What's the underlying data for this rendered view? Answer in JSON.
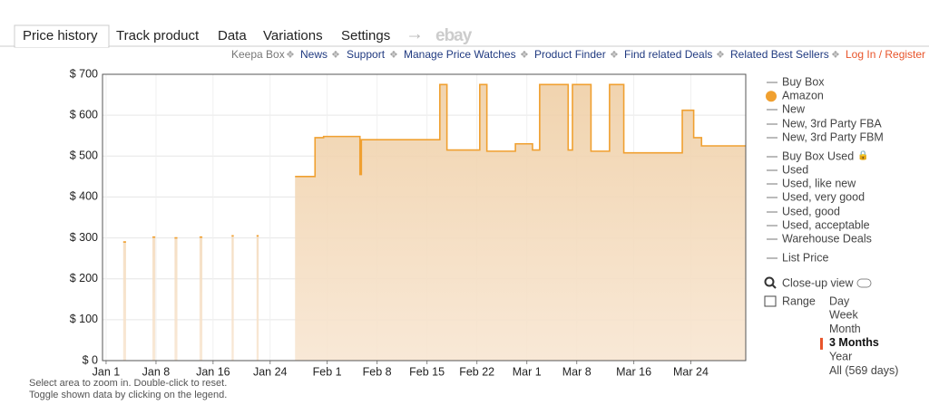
{
  "tabs": [
    "Price history",
    "Track product",
    "Data",
    "Variations",
    "Settings"
  ],
  "ebay_logo": "ebay",
  "links": [
    "Keepa Box",
    "News",
    "Support",
    "Manage Price Watches",
    "Product Finder",
    "Find related Deals",
    "Related Best Sellers",
    "Log In / Register"
  ],
  "chart_data": {
    "type": "line",
    "x": [
      2.4,
      2.8,
      null,
      6.5,
      6.9,
      null,
      9.6,
      10.0,
      null,
      13.1,
      13.5,
      null,
      17.6,
      17.9,
      null,
      21.1,
      21.4,
      null,
      26.5,
      29.3,
      29.3,
      30.5,
      30.5,
      35.6,
      35.6,
      35.8,
      35.8,
      46.8,
      46.8,
      47.8,
      47.8,
      52.4,
      52.4,
      53.4,
      53.4,
      57.4,
      57.4,
      59.8,
      59.8,
      60.8,
      60.8,
      64.8,
      64.8,
      65.4,
      65.4,
      68,
      68,
      70.6,
      70.6,
      72.6,
      72.6,
      80.8,
      80.8,
      82.4,
      82.4,
      83.5,
      83.5,
      89.7
    ],
    "series": [
      {
        "name": "Amazon",
        "color": "#f0a030",
        "values": [
          290,
          290,
          null,
          302,
          302,
          null,
          300,
          300,
          null,
          302,
          302,
          null,
          305,
          305,
          null,
          305,
          305,
          null,
          450,
          450,
          545,
          545,
          548,
          548,
          455,
          455,
          540,
          540,
          675,
          675,
          515,
          515,
          675,
          675,
          512,
          512,
          530,
          530,
          515,
          515,
          675,
          675,
          515,
          515,
          675,
          675,
          512,
          512,
          675,
          675,
          508,
          508,
          612,
          612,
          545,
          545,
          525,
          525
        ]
      }
    ],
    "xlim": [
      -0.5,
      89.7
    ],
    "xticks": [
      {
        "value": 0,
        "label": "Jan 1"
      },
      {
        "value": 7,
        "label": "Jan 8"
      },
      {
        "value": 15,
        "label": "Jan 16"
      },
      {
        "value": 23,
        "label": "Jan 24"
      },
      {
        "value": 31,
        "label": "Feb 1"
      },
      {
        "value": 38,
        "label": "Feb 8"
      },
      {
        "value": 45,
        "label": "Feb 15"
      },
      {
        "value": 52,
        "label": "Feb 22"
      },
      {
        "value": 59,
        "label": "Mar 1"
      },
      {
        "value": 66,
        "label": "Mar 8"
      },
      {
        "value": 74,
        "label": "Mar 16"
      },
      {
        "value": 82,
        "label": "Mar 24"
      }
    ],
    "ylim": [
      0,
      700
    ],
    "yticks": [
      {
        "value": 0,
        "label": "$ 0"
      },
      {
        "value": 100,
        "label": "$ 100"
      },
      {
        "value": 200,
        "label": "$ 200"
      },
      {
        "value": 300,
        "label": "$ 300"
      },
      {
        "value": 400,
        "label": "$ 400"
      },
      {
        "value": 500,
        "label": "$ 500"
      },
      {
        "value": 600,
        "label": "$ 600"
      },
      {
        "value": 700,
        "label": "$ 700"
      }
    ],
    "grid": true
  },
  "legend_before": [
    "Buy Box"
  ],
  "legend_after": [
    "New",
    "New, 3rd Party FBA",
    "New, 3rd Party FBM",
    "Buy Box Used",
    "Used",
    "Used, like new",
    "Used, very good",
    "Used, good",
    "Used, acceptable",
    "Warehouse Deals",
    "List Price"
  ],
  "close_up": "Close-up view",
  "range_label": "Range",
  "ranges": [
    "Day",
    "Week",
    "Month",
    "3 Months",
    "Year",
    "All (569 days)"
  ],
  "selected_range": 3,
  "hints": [
    "Select area to zoom in. Double-click to reset.",
    "Toggle shown data by clicking on the legend."
  ]
}
